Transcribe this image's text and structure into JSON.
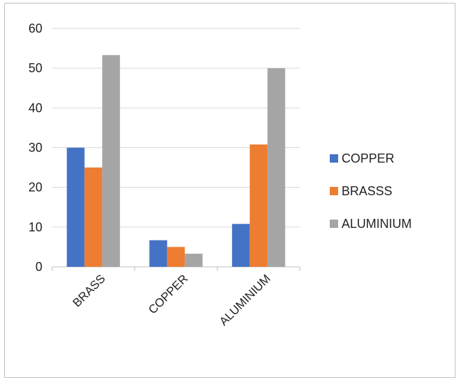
{
  "chart_data": {
    "type": "bar",
    "title": "",
    "xlabel": "",
    "ylabel": "",
    "categories": [
      "BRASS",
      "COPPER",
      "ALUMINIUM"
    ],
    "series": [
      {
        "name": "COPPER",
        "color": "#4472C4",
        "values": [
          30,
          6.7,
          10.8
        ]
      },
      {
        "name": "BRASSS",
        "color": "#ED7D31",
        "values": [
          25,
          5,
          30.8
        ]
      },
      {
        "name": "ALUMINIUM",
        "color": "#A5A5A5",
        "values": [
          53.3,
          3.3,
          50
        ]
      }
    ],
    "ylim": [
      0,
      60
    ],
    "yticks": [
      0,
      10,
      20,
      30,
      40,
      50,
      60
    ],
    "grid": true,
    "legend_position": "right"
  }
}
